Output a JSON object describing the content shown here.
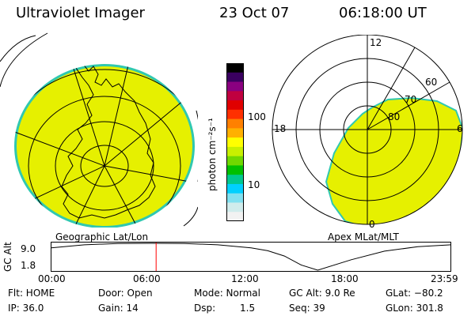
{
  "header": {
    "title": "Ultraviolet Imager",
    "date": "23 Oct 07",
    "time": "06:18:00 UT"
  },
  "panels": {
    "geo_label": "Geographic Lat/Lon",
    "apex_label": "Apex MLat/MLT"
  },
  "colorbar": {
    "unit_label": "photon cm⁻²s⁻¹",
    "ticks": [
      "100",
      "10"
    ],
    "colors": [
      "#000000",
      "#3a0060",
      "#8a0080",
      "#c00040",
      "#e00000",
      "#ff3000",
      "#ff8000",
      "#ffb000",
      "#ffff00",
      "#c8f000",
      "#70d800",
      "#00c000",
      "#00c890",
      "#00d0ff",
      "#80e0f0",
      "#d0ecec",
      "#f2f2f2"
    ]
  },
  "apex_plot": {
    "mlt_labels": {
      "top": "12",
      "left": "18",
      "right": "6",
      "bottom": "0"
    },
    "mlat_labels": [
      "60",
      "70",
      "80"
    ]
  },
  "altitude": {
    "axis_label": "GC Alt",
    "y_ticks": [
      "9.0",
      "1.8"
    ],
    "x_ticks": [
      "00:00",
      "06:00",
      "12:00",
      "18:00",
      "23:59"
    ],
    "current_marker_hours": 6.3,
    "chart_data": {
      "type": "line",
      "x": [
        0,
        2,
        4,
        6,
        8,
        10,
        12,
        13,
        14,
        15,
        16,
        18,
        20,
        22,
        23.98
      ],
      "y": [
        7.8,
        8.6,
        8.95,
        9.0,
        8.95,
        8.6,
        7.8,
        7.0,
        5.6,
        3.2,
        1.8,
        4.6,
        6.9,
        8.1,
        8.6
      ],
      "xlim": [
        0,
        23.98
      ],
      "ylim": [
        1.8,
        9.0
      ]
    }
  },
  "status": {
    "row1": [
      {
        "key": "flt",
        "text": "Flt: HOME"
      },
      {
        "key": "door",
        "text": "Door: Open"
      },
      {
        "key": "mode",
        "text": "Mode: Normal"
      },
      {
        "key": "gcalt",
        "text": "GC Alt: 9.0 Re"
      },
      {
        "key": "glat",
        "text": "GLat: −80.2"
      }
    ],
    "row2": [
      {
        "key": "ip",
        "text": "IP: 36.0"
      },
      {
        "key": "gain",
        "text": "Gain: 14"
      },
      {
        "key": "dsp_label",
        "text": "Dsp:"
      },
      {
        "key": "dsp_value",
        "text": "1.5"
      },
      {
        "key": "seq",
        "text": "Seq: 39"
      },
      {
        "key": "glon",
        "text": "GLon: 301.8"
      }
    ]
  },
  "colors": {
    "aurora_fill": "#e6f000",
    "aurora_edge": "#30c8b0",
    "marker": "#ff0000"
  }
}
